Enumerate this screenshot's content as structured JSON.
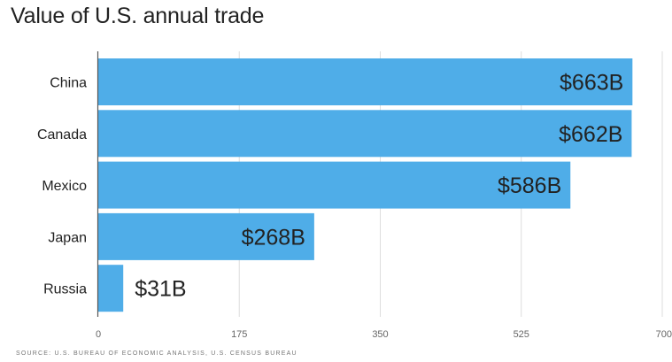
{
  "chart_data": {
    "type": "bar",
    "orientation": "horizontal",
    "title": "Value of U.S. annual trade",
    "categories": [
      "China",
      "Canada",
      "Mexico",
      "Japan",
      "Russia"
    ],
    "values": [
      663,
      662,
      586,
      268,
      31
    ],
    "data_labels": [
      "$663B",
      "$662B",
      "$586B",
      "$268B",
      "$31B"
    ],
    "xlim": [
      0,
      700
    ],
    "xticks": [
      0,
      175,
      350,
      525,
      700
    ],
    "xtick_labels": [
      "0",
      "175",
      "350",
      "525",
      "700"
    ],
    "xlabel": "",
    "ylabel": "",
    "unit": "billion USD",
    "grid": true,
    "bar_color": "#4FADE8",
    "source": "SOURCE: U.S. BUREAU OF ECONOMIC ANALYSIS, U.S. CENSUS BUREAU"
  }
}
